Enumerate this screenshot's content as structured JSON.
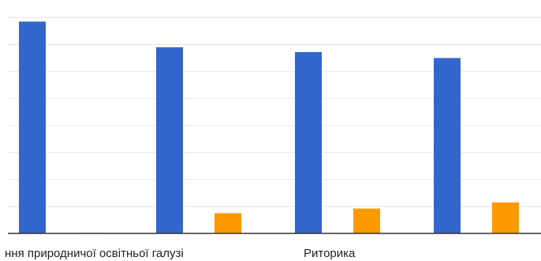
{
  "chart_data": {
    "type": "bar",
    "categories": [
      "",
      "ння природничої освітньої галузі",
      "",
      "Риторика"
    ],
    "series": [
      {
        "values": [
          7.85,
          6.9,
          6.72,
          6.5
        ],
        "color": "#3366cc"
      },
      {
        "values": [
          0.02,
          0.75,
          0.92,
          1.15
        ],
        "color": "#ff9900"
      }
    ],
    "ylim": [
      0,
      8.3
    ],
    "grid": true,
    "gridlines": [
      0,
      1,
      2,
      3,
      4,
      5,
      6,
      7,
      8
    ],
    "tick_labels": [
      "ння природничої освітньої галузі",
      "Риторика"
    ],
    "colors": {
      "gridline": "#e6e6e6",
      "baseline": "#333333",
      "text": "#222222"
    }
  }
}
